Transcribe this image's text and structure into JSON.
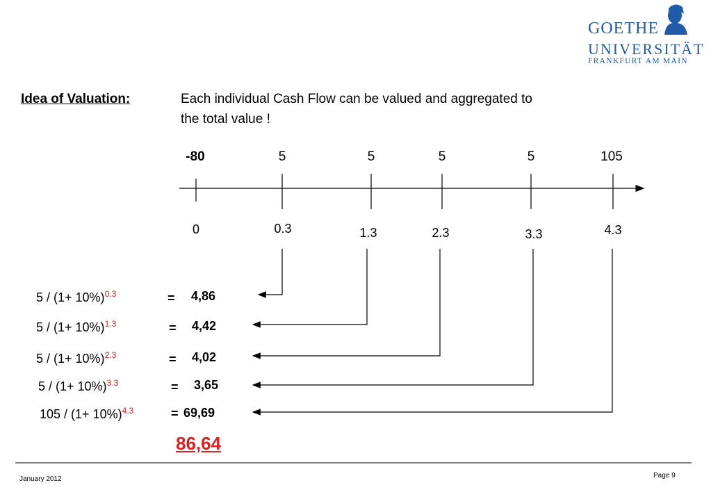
{
  "logo": {
    "line1": "GOETHE",
    "line2": "UNIVERSITÄT",
    "line3": "FRANKFURT AM MAIN",
    "color": "#1f5ba6"
  },
  "heading": "Idea of Valuation:",
  "intro": {
    "line1": "Each individual Cash Flow can be valued and aggregated to",
    "line2": "the total value !"
  },
  "timeline": {
    "cash_flows": [
      "-80",
      "5",
      "5",
      "5",
      "5",
      "105"
    ],
    "times": [
      "0",
      "0.3",
      "1.3",
      "2.3",
      "3.3",
      "4.3"
    ]
  },
  "formulas": [
    {
      "base": "5 / (1+ 10%)",
      "exp": "0.3",
      "eq": "=",
      "value": "4,86"
    },
    {
      "base": "5 / (1+ 10%)",
      "exp": "1.3",
      "eq": "=",
      "value": "4,42"
    },
    {
      "base": "5 / (1+ 10%)",
      "exp": "2.3",
      "eq": "=",
      "value": "4,02"
    },
    {
      "base": "5 / (1+ 10%)",
      "exp": "3.3",
      "eq": "=",
      "value": "3,65"
    },
    {
      "base": "105 / (1+ 10%)",
      "exp": "4.3",
      "eq": "=",
      "value": "69,69"
    }
  ],
  "total": "86,64",
  "footer": {
    "date": "January 2012",
    "page": "Page 9"
  },
  "colors": {
    "accent_red": "#e02020",
    "logo_blue": "#1f5ba6"
  }
}
